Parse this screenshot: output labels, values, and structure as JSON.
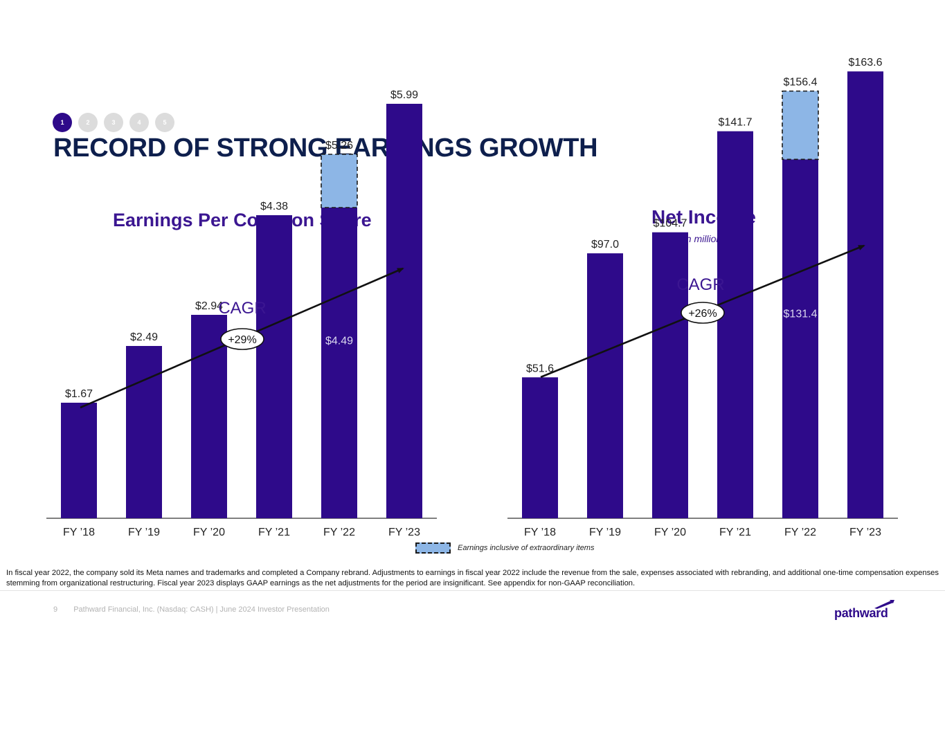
{
  "steps": [
    "1",
    "2",
    "3",
    "4",
    "5"
  ],
  "active_step": 0,
  "slide_title": "RECORD OF STRONG EARNINGS GROWTH",
  "colors": {
    "bar": "#2e0a8a",
    "extraordinary": "#8db6e6",
    "title": "#0e1f4d",
    "chart_title": "#3b1691"
  },
  "chart_data": [
    {
      "type": "bar",
      "title": "Earnings Per Common Share",
      "subtitle": "",
      "categories": [
        "FY ’18",
        "FY ’19",
        "FY ’20",
        "FY ’21",
        "FY ’22",
        "FY ’23"
      ],
      "series": [
        {
          "values": [
            1.67,
            2.49,
            2.94,
            4.38,
            4.49,
            5.99
          ]
        },
        {
          "name": "Earnings inclusive of extraordinary items",
          "values": [
            0,
            0,
            0,
            0,
            0.77,
            0
          ]
        }
      ],
      "labels": [
        "$1.67",
        "$2.49",
        "$2.94",
        "$4.38",
        "$5.26",
        "$5.99"
      ],
      "inner_labels": [
        "",
        "",
        "",
        "",
        "$4.49",
        ""
      ],
      "cagr_label": "CAGR",
      "cagr_value": "+29%",
      "ylim": [
        0,
        7
      ]
    },
    {
      "type": "bar",
      "title": "Net Income",
      "subtitle": "$ in millions",
      "categories": [
        "FY ’18",
        "FY ’19",
        "FY ’20",
        "FY ’21",
        "FY ’22",
        "FY ’23"
      ],
      "series": [
        {
          "values": [
            51.6,
            97.0,
            104.7,
            141.7,
            131.4,
            163.6
          ]
        },
        {
          "name": "Earnings inclusive of extraordinary items",
          "values": [
            0,
            0,
            0,
            0,
            25.0,
            0
          ]
        }
      ],
      "labels": [
        "$51.6",
        "$97.0",
        "$104.7",
        "$141.7",
        "$156.4",
        "$163.6"
      ],
      "inner_labels": [
        "",
        "",
        "",
        "",
        "$131.4",
        ""
      ],
      "cagr_label": "CAGR",
      "cagr_value": "+26%",
      "ylim": [
        0,
        190
      ]
    }
  ],
  "legend_label": "Earnings inclusive of extraordinary items",
  "footnote": "In fiscal year 2022, the company sold its Meta names and trademarks and completed a Company rebrand. Adjustments to earnings in fiscal year 2022 include the revenue from the sale, expenses associated with rebranding, and additional one-time compensation expenses stemming from organizational restructuring. Fiscal year 2023 displays GAAP earnings as the net adjustments for the period are insignificant. See appendix for non-GAAP reconciliation.",
  "footer": {
    "page": "9",
    "text": "Pathward Financial, Inc. (Nasdaq: CASH) | June 2024 Investor Presentation"
  },
  "logo_text": "pathward"
}
